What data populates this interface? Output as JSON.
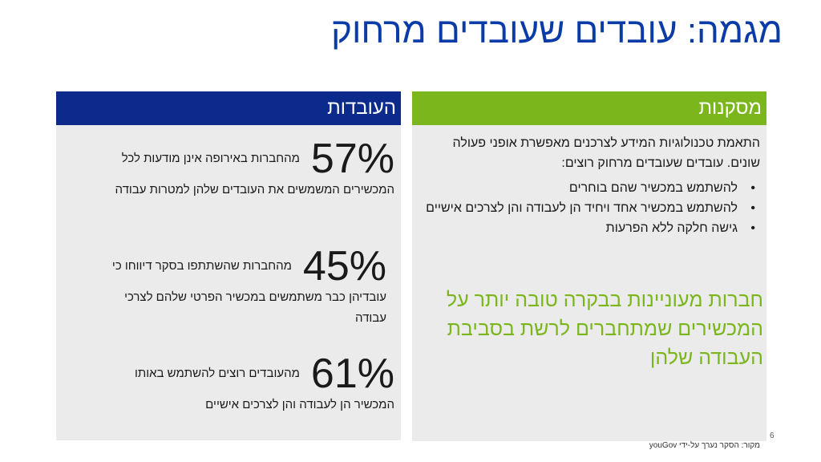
{
  "title": "מגמה: עובדים שעובדים מרחוק",
  "left": {
    "header": "העובדות",
    "stats": [
      {
        "pct": "57%",
        "line1": "מהחברות באירופה אינן מודעות לכל",
        "rest": "המכשירים המשמשים את העובדים שלהן למטרות עבודה"
      },
      {
        "pct": "45%",
        "line1": "מהחברות שהשתתפו בסקר דיווחו כי",
        "rest": "עובדיהן כבר משתמשים במכשיר הפרטי שלהם לצרכי עבודה"
      },
      {
        "pct": "61%",
        "line1": "מהעובדים רוצים להשתמש באותו",
        "rest": "המכשיר הן לעבודה והן לצרכים אישיים"
      }
    ]
  },
  "right": {
    "header": "מסקנות",
    "intro": "התאמת טכנולוגיות המידע לצרכנים מאפשרת אופני פעולה שונים. עובדים שעובדים מרחוק רוצים:",
    "bullets": [
      "להשתמש במכשיר שהם בוחרים",
      "להשתמש במכשיר אחד ויחיד הן לעבודה והן לצרכים אישיים",
      "גישה חלקה ללא הפרעות"
    ],
    "bullet_symbol": "•",
    "highlight": "חברות מעוניינות בבקרה טובה יותר על המכשירים שמתחברים לרשת בסביבת העבודה שלהן"
  },
  "source": "מקור: הסקר נערך על-ידי youGov",
  "page_number": "6",
  "colors": {
    "title": "#0b3ba6",
    "left_header": "#0b2a8c",
    "right_header": "#7ab61c",
    "highlight": "#7ab61c",
    "panel_bg": "#ebebeb"
  }
}
